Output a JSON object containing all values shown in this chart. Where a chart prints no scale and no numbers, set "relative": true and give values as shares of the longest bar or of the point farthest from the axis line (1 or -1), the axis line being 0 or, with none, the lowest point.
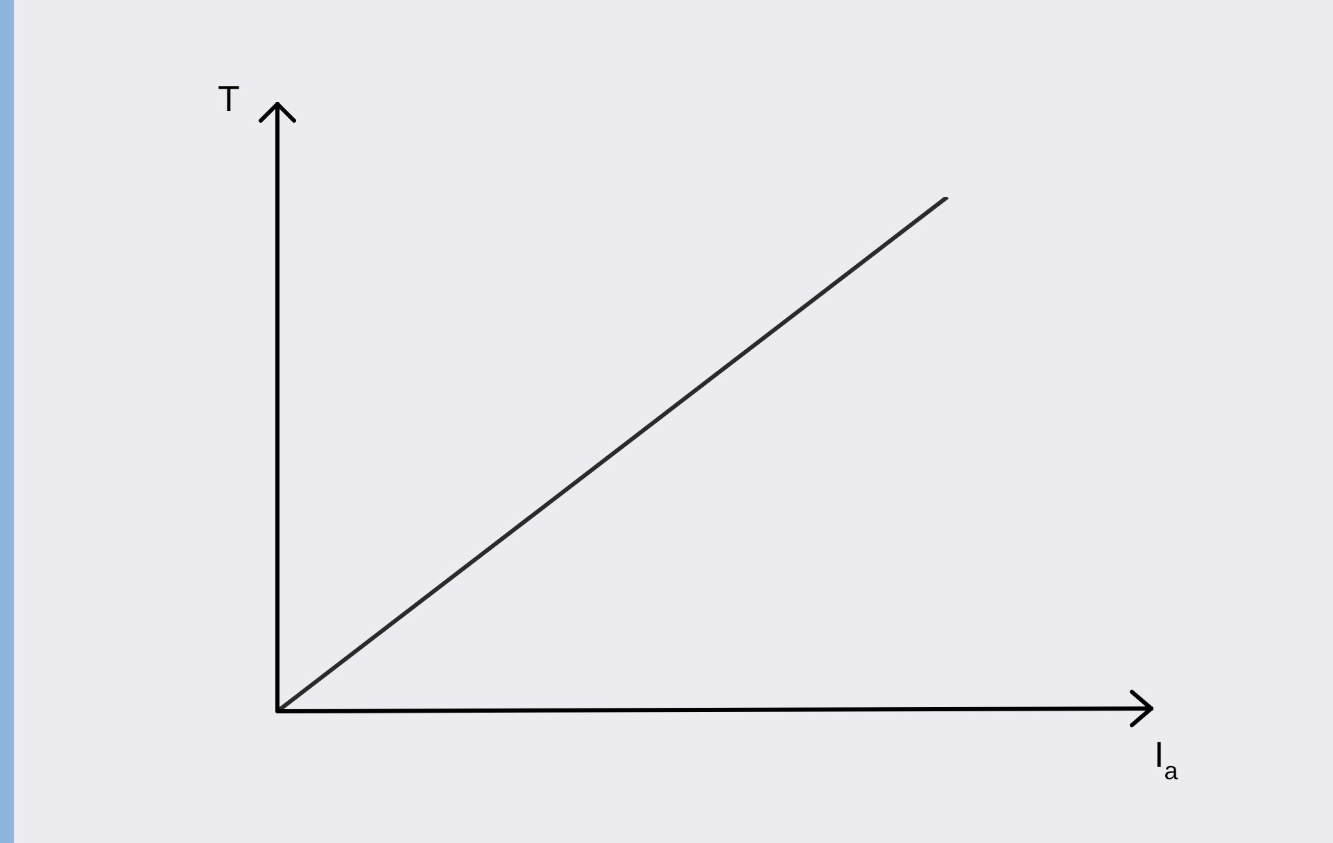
{
  "chart_data": {
    "type": "line",
    "relative": true,
    "xlabel": "I$_{a}$",
    "ylabel": "T",
    "categories": [
      null,
      null
    ],
    "series": [
      {
        "color": "#2a2a2a",
        "values": [
          0,
          1
        ]
      }
    ],
    "legend": false,
    "grid": false,
    "marker": "none",
    "line_style": "solid"
  }
}
